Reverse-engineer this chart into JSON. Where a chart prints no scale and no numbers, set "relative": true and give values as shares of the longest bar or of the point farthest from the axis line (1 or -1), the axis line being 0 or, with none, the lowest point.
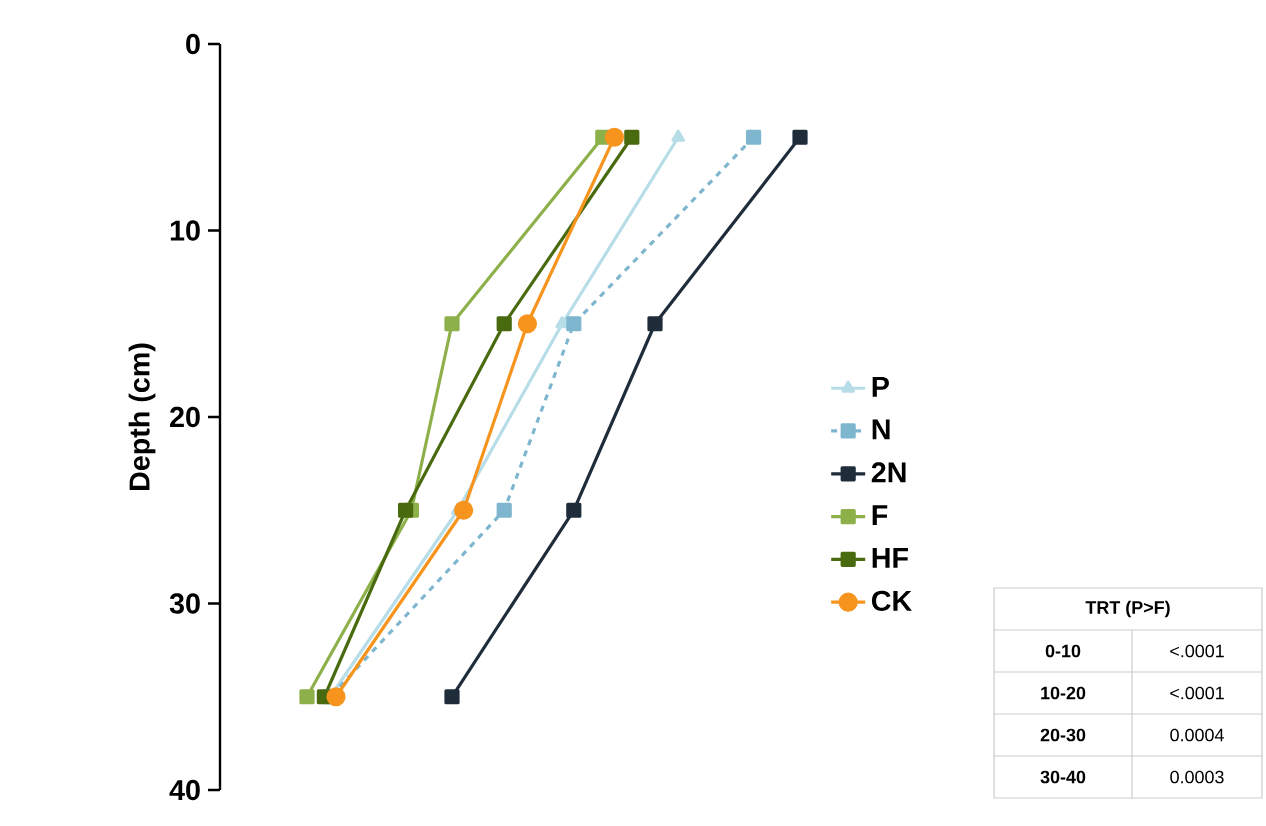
{
  "chart_data": {
    "type": "line",
    "orientation": "horizontal",
    "ylabel": "Depth (cm)",
    "relative": true,
    "ylim": [
      40,
      0
    ],
    "yticks": [
      0,
      10,
      20,
      30,
      40
    ],
    "legend": "right",
    "series": [
      {
        "name": "P",
        "color": "#b7dde8",
        "marker": "triangle",
        "line_style": "solid",
        "x": [
          5,
          15,
          25,
          35
        ],
        "values": [
          0.79,
          0.59,
          0.41,
          0.19
        ]
      },
      {
        "name": "N",
        "color": "#7fb6cf",
        "marker": "square",
        "line_style": "dashed",
        "x": [
          5,
          15,
          25,
          35
        ],
        "values": [
          0.92,
          0.61,
          0.49,
          0.19
        ]
      },
      {
        "name": "2N",
        "color": "#1f2d3a",
        "marker": "square",
        "line_style": "solid",
        "x": [
          5,
          15,
          25,
          35
        ],
        "values": [
          1,
          0.75,
          0.61,
          0.4
        ]
      },
      {
        "name": "F",
        "color": "#8db04a",
        "marker": "square",
        "line_style": "solid",
        "x": [
          5,
          15,
          25,
          35
        ],
        "values": [
          0.66,
          0.4,
          0.33,
          0.15
        ]
      },
      {
        "name": "HF",
        "color": "#4a6a10",
        "marker": "square",
        "line_style": "solid",
        "x": [
          5,
          15,
          25,
          35
        ],
        "values": [
          0.71,
          0.49,
          0.32,
          0.18
        ]
      },
      {
        "name": "CK",
        "color": "#f7941d",
        "marker": "circle",
        "line_style": "solid",
        "x": [
          5,
          15,
          25,
          35
        ],
        "values": [
          0.68,
          0.53,
          0.42,
          0.2
        ]
      }
    ],
    "annotations": [
      "TRT (P>F)",
      "0-10",
      "<.0001",
      "10-20",
      "<.0001",
      "20-30",
      "0.0004",
      "30-40",
      "0.0003"
    ]
  }
}
